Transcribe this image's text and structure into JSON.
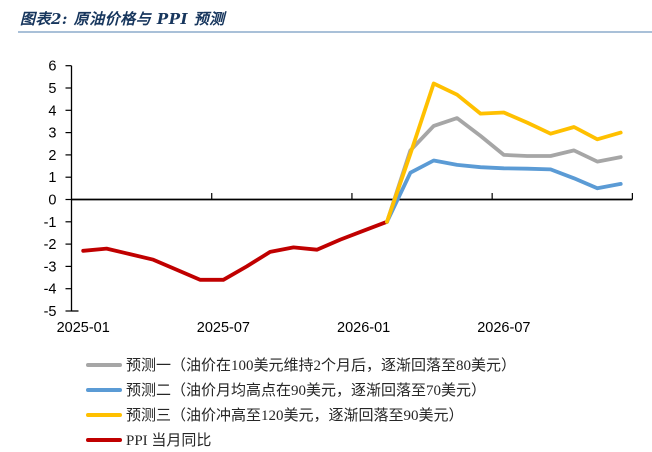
{
  "header": {
    "title": "图表2: 原油价格与 PPI 预测"
  },
  "chart_data": {
    "type": "line",
    "months": [
      "2025-01",
      "2025-02",
      "2025-03",
      "2025-04",
      "2025-05",
      "2025-06",
      "2025-07",
      "2025-08",
      "2025-09",
      "2025-10",
      "2025-11",
      "2025-12",
      "2026-01",
      "2026-02",
      "2026-03",
      "2026-04",
      "2026-05",
      "2026-06",
      "2026-07",
      "2026-08",
      "2026-09",
      "2026-10",
      "2026-11",
      "2026-12"
    ],
    "x_tick_labels": [
      "2025-01",
      "2025-07",
      "2026-01",
      "2026-07"
    ],
    "y_ticks": [
      6,
      5,
      4,
      3,
      2,
      1,
      0,
      -1,
      -2,
      -3,
      -4,
      -5
    ],
    "ylim": [
      -5,
      6
    ],
    "grid": false,
    "legend_position": "bottom",
    "series": [
      {
        "name": "PPI 当月同比",
        "color": "#C00000",
        "values": [
          -2.3,
          -2.2,
          -2.45,
          -2.7,
          -3.15,
          -3.6,
          -3.6,
          -3.0,
          -2.35,
          -2.15,
          -2.25,
          -1.8,
          -1.4,
          -1.0,
          null,
          null,
          null,
          null,
          null,
          null,
          null,
          null,
          null,
          null
        ]
      },
      {
        "name": "预测一（油价在100美元维持2个月后，逐渐回落至80美元）",
        "color": "#A6A6A6",
        "values": [
          null,
          null,
          null,
          null,
          null,
          null,
          null,
          null,
          null,
          null,
          null,
          null,
          null,
          -1.0,
          2.2,
          3.3,
          3.65,
          2.85,
          2.0,
          1.95,
          1.95,
          2.2,
          1.7,
          1.9
        ]
      },
      {
        "name": "预测二（油价月均高点在90美元，逐渐回落至70美元）",
        "color": "#5B9BD5",
        "values": [
          null,
          null,
          null,
          null,
          null,
          null,
          null,
          null,
          null,
          null,
          null,
          null,
          null,
          -1.0,
          1.2,
          1.75,
          1.55,
          1.45,
          1.4,
          1.38,
          1.35,
          0.95,
          0.5,
          0.7
        ]
      },
      {
        "name": "预测三（油价冲高至120美元，逐渐回落至90美元）",
        "color": "#FFC000",
        "values": [
          null,
          null,
          null,
          null,
          null,
          null,
          null,
          null,
          null,
          null,
          null,
          null,
          null,
          -1.0,
          2.05,
          5.2,
          4.7,
          3.85,
          3.9,
          3.45,
          2.95,
          3.25,
          2.7,
          3.0
        ]
      }
    ]
  },
  "legend": {
    "items": [
      {
        "label": "预测一（油价在100美元维持2个月后，逐渐回落至80美元）",
        "color": "#A6A6A6"
      },
      {
        "label": "预测二（油价月均高点在90美元，逐渐回落至70美元）",
        "color": "#5B9BD5"
      },
      {
        "label": "预测三（油价冲高至120美元，逐渐回落至90美元）",
        "color": "#FFC000"
      },
      {
        "label": "PPI 当月同比",
        "color": "#C00000"
      }
    ]
  },
  "colors": {
    "title": "#17365D",
    "title_rule": "#A9C0D8",
    "axis": "#000000"
  }
}
